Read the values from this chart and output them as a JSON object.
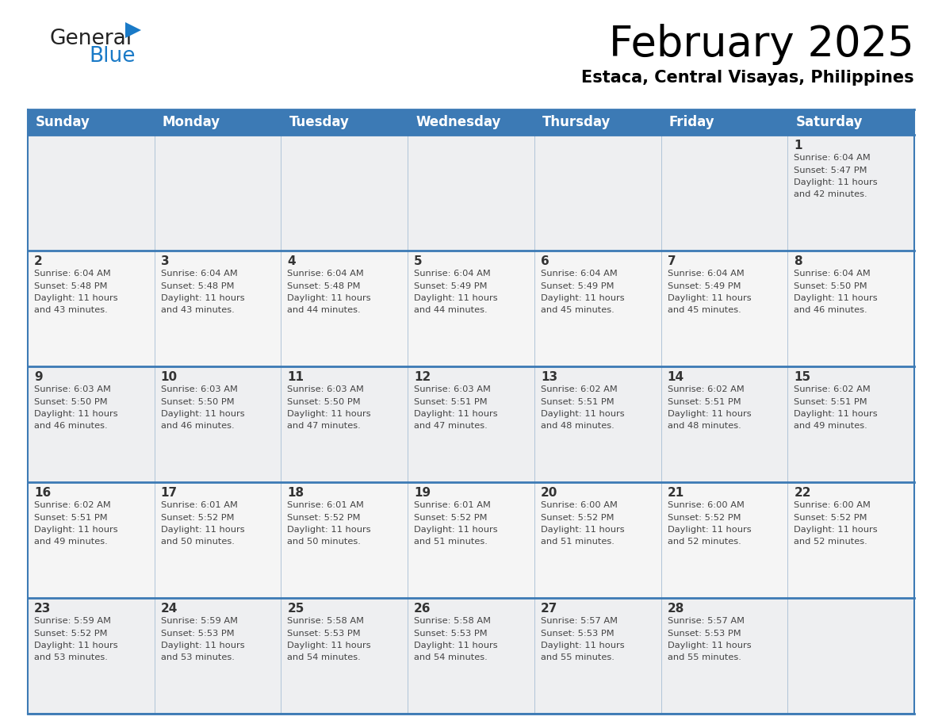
{
  "title": "February 2025",
  "subtitle": "Estaca, Central Visayas, Philippines",
  "header_bg_color": "#3c7ab5",
  "header_text_color": "#ffffff",
  "cell_bg_row0": "#eeeff1",
  "cell_bg_row1": "#f5f5f5",
  "cell_bg_row2": "#eeeff1",
  "cell_bg_row3": "#f5f5f5",
  "cell_bg_row4": "#eeeff1",
  "border_color_thick": "#3c7ab5",
  "border_color_thin": "#b0c4d8",
  "day_headers": [
    "Sunday",
    "Monday",
    "Tuesday",
    "Wednesday",
    "Thursday",
    "Friday",
    "Saturday"
  ],
  "title_fontsize": 38,
  "subtitle_fontsize": 15,
  "header_fontsize": 12,
  "day_num_fontsize": 11,
  "cell_text_fontsize": 8.2,
  "logo_general_color": "#222222",
  "logo_blue_color": "#1a7ac7",
  "logo_triangle_color": "#1a7ac7",
  "days": [
    {
      "day": 1,
      "col": 6,
      "row": 0,
      "sunrise": "6:04 AM",
      "sunset": "5:47 PM",
      "daylight_h": "11 hours",
      "daylight_m": "and 42 minutes."
    },
    {
      "day": 2,
      "col": 0,
      "row": 1,
      "sunrise": "6:04 AM",
      "sunset": "5:48 PM",
      "daylight_h": "11 hours",
      "daylight_m": "and 43 minutes."
    },
    {
      "day": 3,
      "col": 1,
      "row": 1,
      "sunrise": "6:04 AM",
      "sunset": "5:48 PM",
      "daylight_h": "11 hours",
      "daylight_m": "and 43 minutes."
    },
    {
      "day": 4,
      "col": 2,
      "row": 1,
      "sunrise": "6:04 AM",
      "sunset": "5:48 PM",
      "daylight_h": "11 hours",
      "daylight_m": "and 44 minutes."
    },
    {
      "day": 5,
      "col": 3,
      "row": 1,
      "sunrise": "6:04 AM",
      "sunset": "5:49 PM",
      "daylight_h": "11 hours",
      "daylight_m": "and 44 minutes."
    },
    {
      "day": 6,
      "col": 4,
      "row": 1,
      "sunrise": "6:04 AM",
      "sunset": "5:49 PM",
      "daylight_h": "11 hours",
      "daylight_m": "and 45 minutes."
    },
    {
      "day": 7,
      "col": 5,
      "row": 1,
      "sunrise": "6:04 AM",
      "sunset": "5:49 PM",
      "daylight_h": "11 hours",
      "daylight_m": "and 45 minutes."
    },
    {
      "day": 8,
      "col": 6,
      "row": 1,
      "sunrise": "6:04 AM",
      "sunset": "5:50 PM",
      "daylight_h": "11 hours",
      "daylight_m": "and 46 minutes."
    },
    {
      "day": 9,
      "col": 0,
      "row": 2,
      "sunrise": "6:03 AM",
      "sunset": "5:50 PM",
      "daylight_h": "11 hours",
      "daylight_m": "and 46 minutes."
    },
    {
      "day": 10,
      "col": 1,
      "row": 2,
      "sunrise": "6:03 AM",
      "sunset": "5:50 PM",
      "daylight_h": "11 hours",
      "daylight_m": "and 46 minutes."
    },
    {
      "day": 11,
      "col": 2,
      "row": 2,
      "sunrise": "6:03 AM",
      "sunset": "5:50 PM",
      "daylight_h": "11 hours",
      "daylight_m": "and 47 minutes."
    },
    {
      "day": 12,
      "col": 3,
      "row": 2,
      "sunrise": "6:03 AM",
      "sunset": "5:51 PM",
      "daylight_h": "11 hours",
      "daylight_m": "and 47 minutes."
    },
    {
      "day": 13,
      "col": 4,
      "row": 2,
      "sunrise": "6:02 AM",
      "sunset": "5:51 PM",
      "daylight_h": "11 hours",
      "daylight_m": "and 48 minutes."
    },
    {
      "day": 14,
      "col": 5,
      "row": 2,
      "sunrise": "6:02 AM",
      "sunset": "5:51 PM",
      "daylight_h": "11 hours",
      "daylight_m": "and 48 minutes."
    },
    {
      "day": 15,
      "col": 6,
      "row": 2,
      "sunrise": "6:02 AM",
      "sunset": "5:51 PM",
      "daylight_h": "11 hours",
      "daylight_m": "and 49 minutes."
    },
    {
      "day": 16,
      "col": 0,
      "row": 3,
      "sunrise": "6:02 AM",
      "sunset": "5:51 PM",
      "daylight_h": "11 hours",
      "daylight_m": "and 49 minutes."
    },
    {
      "day": 17,
      "col": 1,
      "row": 3,
      "sunrise": "6:01 AM",
      "sunset": "5:52 PM",
      "daylight_h": "11 hours",
      "daylight_m": "and 50 minutes."
    },
    {
      "day": 18,
      "col": 2,
      "row": 3,
      "sunrise": "6:01 AM",
      "sunset": "5:52 PM",
      "daylight_h": "11 hours",
      "daylight_m": "and 50 minutes."
    },
    {
      "day": 19,
      "col": 3,
      "row": 3,
      "sunrise": "6:01 AM",
      "sunset": "5:52 PM",
      "daylight_h": "11 hours",
      "daylight_m": "and 51 minutes."
    },
    {
      "day": 20,
      "col": 4,
      "row": 3,
      "sunrise": "6:00 AM",
      "sunset": "5:52 PM",
      "daylight_h": "11 hours",
      "daylight_m": "and 51 minutes."
    },
    {
      "day": 21,
      "col": 5,
      "row": 3,
      "sunrise": "6:00 AM",
      "sunset": "5:52 PM",
      "daylight_h": "11 hours",
      "daylight_m": "and 52 minutes."
    },
    {
      "day": 22,
      "col": 6,
      "row": 3,
      "sunrise": "6:00 AM",
      "sunset": "5:52 PM",
      "daylight_h": "11 hours",
      "daylight_m": "and 52 minutes."
    },
    {
      "day": 23,
      "col": 0,
      "row": 4,
      "sunrise": "5:59 AM",
      "sunset": "5:52 PM",
      "daylight_h": "11 hours",
      "daylight_m": "and 53 minutes."
    },
    {
      "day": 24,
      "col": 1,
      "row": 4,
      "sunrise": "5:59 AM",
      "sunset": "5:53 PM",
      "daylight_h": "11 hours",
      "daylight_m": "and 53 minutes."
    },
    {
      "day": 25,
      "col": 2,
      "row": 4,
      "sunrise": "5:58 AM",
      "sunset": "5:53 PM",
      "daylight_h": "11 hours",
      "daylight_m": "and 54 minutes."
    },
    {
      "day": 26,
      "col": 3,
      "row": 4,
      "sunrise": "5:58 AM",
      "sunset": "5:53 PM",
      "daylight_h": "11 hours",
      "daylight_m": "and 54 minutes."
    },
    {
      "day": 27,
      "col": 4,
      "row": 4,
      "sunrise": "5:57 AM",
      "sunset": "5:53 PM",
      "daylight_h": "11 hours",
      "daylight_m": "and 55 minutes."
    },
    {
      "day": 28,
      "col": 5,
      "row": 4,
      "sunrise": "5:57 AM",
      "sunset": "5:53 PM",
      "daylight_h": "11 hours",
      "daylight_m": "and 55 minutes."
    }
  ],
  "num_rows": 5
}
